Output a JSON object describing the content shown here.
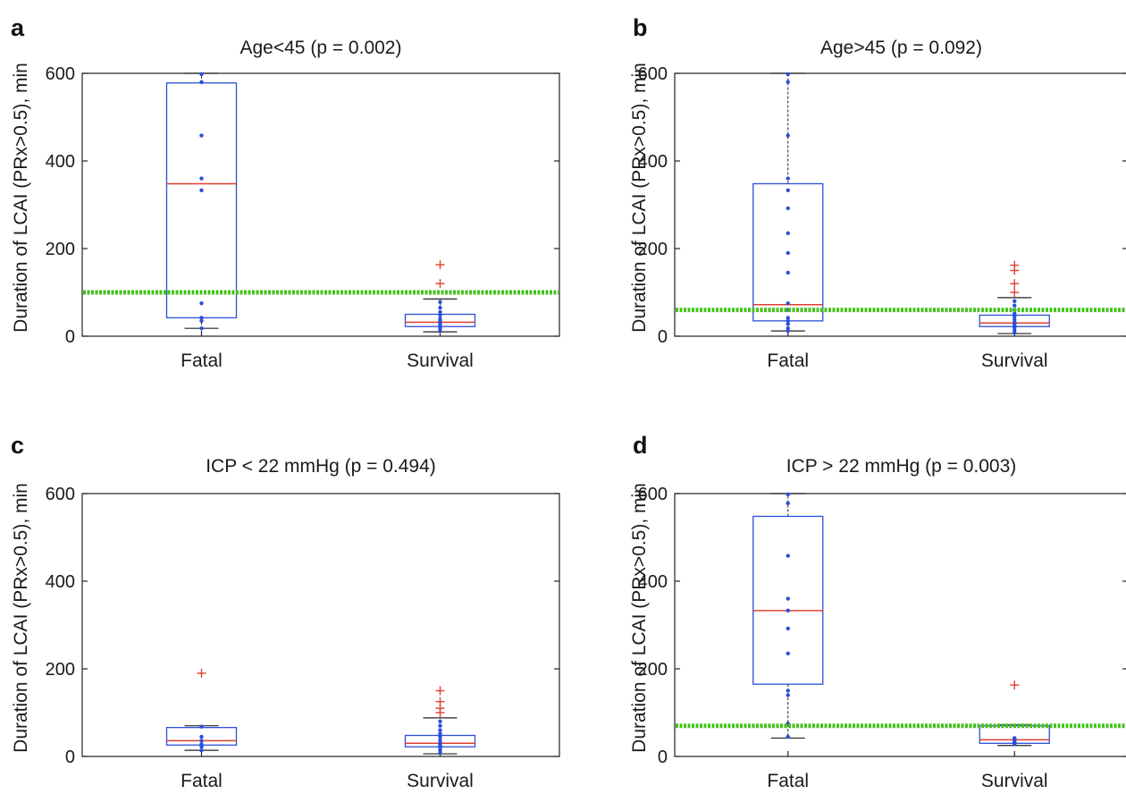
{
  "chart_data": [
    {
      "type": "box",
      "panel_label": "a",
      "title": "Age<45 (p = 0.002)",
      "ylabel": "Duration of LCAI (PRx>0.5), min",
      "ylim": [
        0,
        600
      ],
      "yticks": [
        0,
        200,
        400,
        600
      ],
      "categories": [
        "Fatal",
        "Survival"
      ],
      "threshold": 100,
      "boxes": [
        {
          "name": "Fatal",
          "whisker_low": 18,
          "q1": 42,
          "median": 348,
          "q3": 578,
          "whisker_high": 600,
          "outliers": [],
          "points": [
            18,
            35,
            42,
            75,
            333,
            360,
            458,
            580,
            598
          ]
        },
        {
          "name": "Survival",
          "whisker_low": 10,
          "q1": 22,
          "median": 32,
          "q3": 50,
          "whisker_high": 85,
          "outliers": [
            120,
            163
          ],
          "points": [
            12,
            18,
            22,
            26,
            30,
            35,
            40,
            48,
            55,
            65,
            78
          ]
        }
      ]
    },
    {
      "type": "box",
      "panel_label": "b",
      "title": "Age>45 (p = 0.092)",
      "ylabel": "Duration of LCAI (PRx>0.5), min",
      "ylim": [
        0,
        600
      ],
      "yticks": [
        0,
        200,
        400,
        600
      ],
      "categories": [
        "Fatal",
        "Survival"
      ],
      "threshold": 60,
      "boxes": [
        {
          "name": "Fatal",
          "whisker_low": 12,
          "q1": 35,
          "median": 72,
          "q3": 348,
          "whisker_high": 600,
          "outliers": [],
          "points": [
            12,
            18,
            28,
            35,
            42,
            60,
            75,
            145,
            190,
            235,
            292,
            333,
            360,
            458,
            580,
            598
          ]
        },
        {
          "name": "Survival",
          "whisker_low": 6,
          "q1": 22,
          "median": 30,
          "q3": 48,
          "whisker_high": 88,
          "outliers": [
            100,
            120,
            150,
            162
          ],
          "points": [
            8,
            14,
            20,
            24,
            28,
            32,
            38,
            45,
            52,
            60,
            70,
            80
          ]
        }
      ]
    },
    {
      "type": "box",
      "panel_label": "c",
      "title": "ICP < 22 mmHg (p = 0.494)",
      "ylabel": "Duration of LCAI (PRx>0.5), min",
      "ylim": [
        0,
        600
      ],
      "yticks": [
        0,
        200,
        400,
        600
      ],
      "categories": [
        "Fatal",
        "Survival"
      ],
      "threshold": null,
      "boxes": [
        {
          "name": "Fatal",
          "whisker_low": 14,
          "q1": 26,
          "median": 36,
          "q3": 66,
          "whisker_high": 70,
          "outliers": [
            190
          ],
          "points": [
            14,
            22,
            28,
            36,
            45,
            68
          ]
        },
        {
          "name": "Survival",
          "whisker_low": 6,
          "q1": 22,
          "median": 30,
          "q3": 48,
          "whisker_high": 88,
          "outliers": [
            100,
            110,
            125,
            150
          ],
          "points": [
            8,
            14,
            20,
            24,
            28,
            32,
            38,
            45,
            52,
            60,
            70,
            80
          ]
        }
      ]
    },
    {
      "type": "box",
      "panel_label": "d",
      "title": "ICP > 22 mmHg (p = 0.003)",
      "ylabel": "Duration of LCAI (PRx>0.5), min",
      "ylim": [
        0,
        600
      ],
      "yticks": [
        0,
        200,
        400,
        600
      ],
      "categories": [
        "Fatal",
        "Survival"
      ],
      "threshold": 70,
      "boxes": [
        {
          "name": "Fatal",
          "whisker_low": 42,
          "q1": 165,
          "median": 333,
          "q3": 548,
          "whisker_high": 600,
          "outliers": [],
          "points": [
            45,
            75,
            140,
            150,
            235,
            292,
            333,
            360,
            458,
            578,
            598
          ]
        },
        {
          "name": "Survival",
          "whisker_low": 25,
          "q1": 30,
          "median": 38,
          "q3": 70,
          "whisker_high": 72,
          "outliers": [
            163
          ],
          "points": [
            28,
            32,
            35,
            40,
            42
          ]
        }
      ]
    }
  ]
}
